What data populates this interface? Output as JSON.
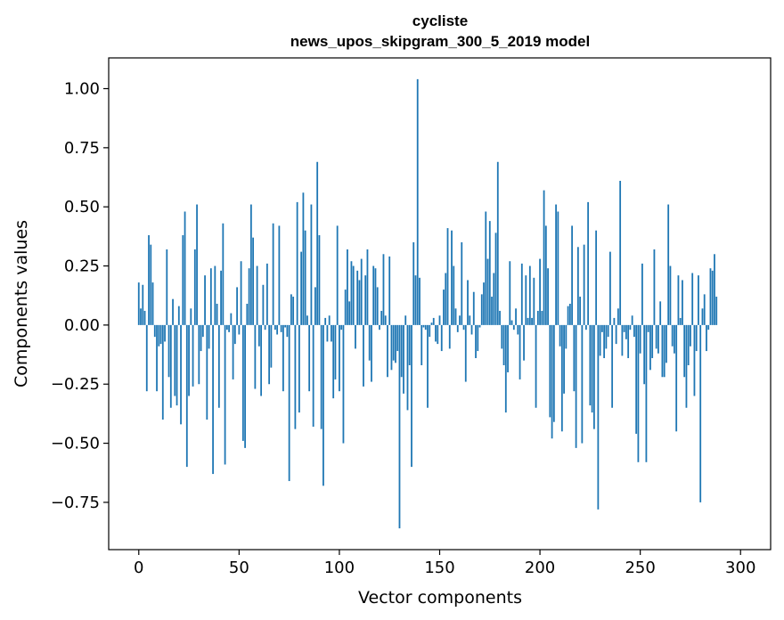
{
  "chart_data": {
    "type": "bar",
    "title_line1": "cycliste",
    "title_line2": "news_upos_skipgram_300_5_2019 model",
    "xlabel": "Vector components",
    "ylabel": "Components values",
    "xlim": [
      -15,
      315
    ],
    "ylim": [
      -0.95,
      1.13
    ],
    "xticks": [
      0,
      50,
      100,
      150,
      200,
      250,
      300
    ],
    "xtick_labels": [
      "0",
      "50",
      "100",
      "150",
      "200",
      "250",
      "300"
    ],
    "yticks": [
      -0.75,
      -0.5,
      -0.25,
      0.0,
      0.25,
      0.5,
      0.75,
      1.0
    ],
    "ytick_labels": [
      "−0.75",
      "−0.50",
      "−0.25",
      "0.00",
      "0.25",
      "0.50",
      "0.75",
      "1.00"
    ],
    "bar_color": "#1f77b4",
    "values": [
      0.18,
      0.07,
      0.17,
      0.06,
      -0.28,
      0.38,
      0.34,
      0.18,
      -0.05,
      -0.28,
      -0.09,
      -0.08,
      -0.4,
      -0.07,
      0.32,
      -0.22,
      -0.35,
      0.11,
      -0.3,
      -0.34,
      0.08,
      -0.42,
      0.38,
      0.48,
      -0.6,
      -0.3,
      0.07,
      -0.26,
      0.32,
      0.51,
      -0.25,
      -0.11,
      -0.05,
      0.21,
      -0.4,
      -0.1,
      0.24,
      -0.63,
      0.25,
      0.09,
      -0.35,
      0.23,
      0.43,
      -0.59,
      -0.02,
      -0.03,
      0.05,
      -0.23,
      -0.08,
      0.16,
      -0.04,
      0.27,
      -0.49,
      -0.52,
      0.09,
      0.24,
      0.51,
      0.37,
      -0.27,
      0.25,
      -0.09,
      -0.3,
      0.17,
      -0.02,
      0.26,
      -0.25,
      -0.18,
      0.43,
      -0.02,
      -0.04,
      0.42,
      -0.03,
      -0.28,
      -0.01,
      -0.05,
      -0.66,
      0.13,
      0.12,
      -0.44,
      0.52,
      -0.37,
      0.31,
      0.56,
      0.4,
      0.04,
      -0.28,
      0.51,
      -0.43,
      0.16,
      0.69,
      0.38,
      -0.44,
      -0.68,
      0.03,
      -0.07,
      0.04,
      -0.07,
      -0.31,
      -0.23,
      0.42,
      -0.28,
      -0.02,
      -0.5,
      0.15,
      0.32,
      0.1,
      0.27,
      0.25,
      -0.1,
      0.23,
      0.19,
      0.28,
      -0.26,
      0.21,
      0.32,
      -0.15,
      -0.24,
      0.25,
      0.24,
      0.16,
      -0.02,
      0.06,
      0.3,
      0.04,
      -0.22,
      0.29,
      -0.19,
      -0.15,
      -0.16,
      -0.11,
      -0.86,
      -0.22,
      -0.29,
      0.04,
      -0.36,
      -0.17,
      -0.6,
      0.35,
      0.21,
      1.04,
      0.2,
      -0.17,
      -0.01,
      -0.02,
      -0.35,
      -0.05,
      0.01,
      0.03,
      -0.07,
      -0.08,
      0.04,
      -0.11,
      0.15,
      0.22,
      0.41,
      -0.1,
      0.4,
      0.25,
      0.07,
      -0.03,
      0.04,
      0.35,
      -0.02,
      -0.24,
      0.19,
      0.04,
      -0.04,
      0.14,
      -0.14,
      -0.11,
      -0.01,
      0.13,
      0.18,
      0.48,
      0.28,
      0.44,
      0.12,
      0.22,
      0.39,
      0.69,
      0.06,
      -0.1,
      -0.17,
      -0.37,
      -0.2,
      0.27,
      0.02,
      -0.02,
      0.07,
      -0.04,
      -0.23,
      0.26,
      -0.15,
      0.21,
      0.03,
      0.25,
      0.03,
      0.2,
      -0.35,
      0.06,
      0.28,
      0.06,
      0.57,
      0.42,
      0.24,
      -0.39,
      -0.48,
      -0.41,
      0.51,
      0.48,
      -0.09,
      -0.45,
      -0.29,
      -0.1,
      0.08,
      0.09,
      0.42,
      -0.28,
      -0.52,
      0.33,
      0.12,
      -0.5,
      0.34,
      -0.02,
      0.52,
      -0.34,
      -0.37,
      -0.44,
      0.4,
      -0.78,
      -0.13,
      -0.03,
      -0.14,
      -0.1,
      -0.05,
      0.31,
      -0.35,
      0.03,
      -0.08,
      0.07,
      0.61,
      -0.13,
      -0.03,
      -0.06,
      -0.14,
      -0.02,
      0.04,
      -0.05,
      -0.46,
      -0.58,
      -0.12,
      0.26,
      -0.25,
      -0.58,
      -0.03,
      -0.19,
      -0.14,
      0.32,
      -0.1,
      -0.12,
      0.1,
      -0.22,
      -0.22,
      -0.16,
      0.51,
      0.25,
      -0.09,
      -0.12,
      -0.45,
      0.21,
      0.03,
      0.19,
      -0.22,
      -0.35,
      -0.17,
      -0.09,
      0.22,
      -0.3,
      -0.11,
      0.21,
      -0.75,
      0.07,
      0.13,
      -0.11,
      -0.02,
      0.24,
      0.23,
      0.3,
      0.12
    ]
  }
}
